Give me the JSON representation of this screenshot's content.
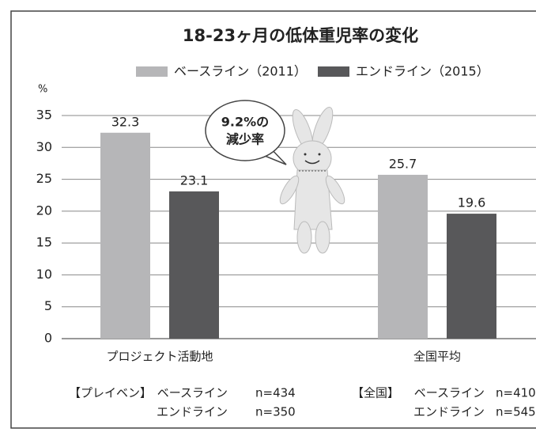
{
  "chart_data": {
    "type": "bar",
    "title": "18-23ヶ月の低体重児率の変化",
    "y_label": "%",
    "categories": [
      "プロジェクト活動地",
      "全国平均"
    ],
    "series": [
      {
        "name": "ベースライン（2011）",
        "color": "#b6b6b8",
        "values": [
          32.3,
          25.7
        ]
      },
      {
        "name": "エンドライン（2015）",
        "color": "#58585a",
        "values": [
          23.1,
          19.6
        ]
      }
    ],
    "ylim": [
      0,
      35
    ],
    "yticks": [
      0,
      5,
      10,
      15,
      20,
      25,
      30,
      35
    ],
    "grid": true,
    "annotation": [
      "9.2%の",
      "減少率"
    ],
    "notes": [
      [
        {
          "prefix": "【プレイベン】",
          "label": "ベースライン",
          "n": "n=434"
        },
        {
          "label": "エンドライン",
          "n": "n=350"
        }
      ],
      [
        {
          "prefix": "【全国】",
          "label": "ベースライン",
          "n": "n=410"
        },
        {
          "label": "エンドライン",
          "n": "n=545"
        }
      ]
    ]
  }
}
